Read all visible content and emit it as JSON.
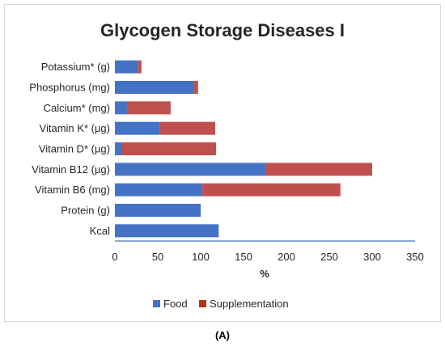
{
  "chart_data": {
    "type": "bar",
    "orientation": "horizontal",
    "stacked": true,
    "title": "Glycogen Storage Diseases I",
    "xlabel": "%",
    "caption": "(A)",
    "categories": [
      "Potassium* (g)",
      "Phosphorus (mg)",
      "Calcium* (mg)",
      "Vitamin K* (µg)",
      "Vitamin D* (µg)",
      "Vitamin B12 (µg)",
      "Vitamin B6 (mg)",
      "Protein (g)",
      "Kcal"
    ],
    "series": [
      {
        "name": "Food",
        "color": "#4472C4",
        "values": [
          27,
          92,
          14,
          52,
          8,
          176,
          102,
          100,
          121
        ]
      },
      {
        "name": "Supplementation",
        "color": "#C0504D",
        "values": [
          4,
          5,
          51,
          65,
          110,
          124,
          161,
          0,
          0
        ]
      }
    ],
    "xlim": [
      0,
      350
    ],
    "xticks": [
      0,
      50,
      100,
      150,
      200,
      250,
      300,
      350
    ],
    "grid": false,
    "legend_position": "bottom",
    "legend_swatch_colors": [
      "#4472C4",
      "#A8381A"
    ]
  }
}
